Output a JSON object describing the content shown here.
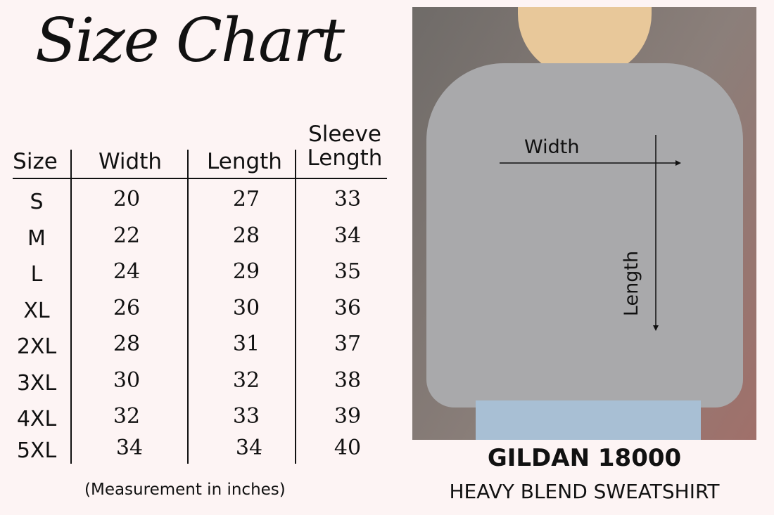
{
  "title": "Size Chart",
  "table": {
    "headers": [
      "Size",
      "Width",
      "Length",
      "Sleeve Length"
    ],
    "rows": [
      [
        "S",
        "20",
        "27",
        "33"
      ],
      [
        "M",
        "22",
        "28",
        "34"
      ],
      [
        "L",
        "24",
        "29",
        "35"
      ],
      [
        "XL",
        "26",
        "30",
        "36"
      ],
      [
        "2XL",
        "28",
        "31",
        "37"
      ],
      [
        "3XL",
        "30",
        "32",
        "38"
      ],
      [
        "4XL",
        "32",
        "33",
        "39"
      ],
      [
        "5XL",
        "34",
        "34",
        "40"
      ]
    ]
  },
  "note": "(Measurement in inches)",
  "photo": {
    "width_label": "Width",
    "length_label": "Length"
  },
  "product": {
    "brand": "GILDAN 18000",
    "name": "HEAVY BLEND SWEATSHIRT"
  }
}
